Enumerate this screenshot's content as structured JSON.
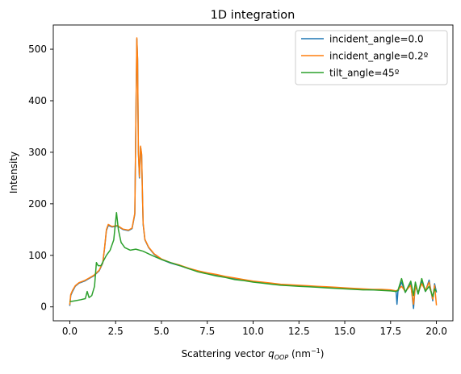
{
  "chart_data": {
    "type": "line",
    "title": "1D integration",
    "xlabel_main": "Scattering vector ",
    "xlabel_var": "q",
    "xlabel_sub": "OOP",
    "xlabel_unit": " (nm",
    "xlabel_exp": "−1",
    "xlabel_close": ")",
    "ylabel": "Intensity",
    "xlim": [
      -0.9,
      20.9
    ],
    "ylim": [
      -27,
      547
    ],
    "xticks": [
      0.0,
      2.5,
      5.0,
      7.5,
      10.0,
      12.5,
      15.0,
      17.5,
      20.0
    ],
    "xtick_labels": [
      "0.0",
      "2.5",
      "5.0",
      "7.5",
      "10.0",
      "12.5",
      "15.0",
      "17.5",
      "20.0"
    ],
    "yticks": [
      0,
      100,
      200,
      300,
      400,
      500
    ],
    "ytick_labels": [
      "0",
      "100",
      "200",
      "300",
      "400",
      "500"
    ],
    "legend_position": "top-right",
    "series": [
      {
        "name": "incident_angle=0.0",
        "color": "#1f77b4",
        "points": [
          [
            0.0,
            2
          ],
          [
            0.05,
            22
          ],
          [
            0.15,
            30
          ],
          [
            0.3,
            40
          ],
          [
            0.5,
            46
          ],
          [
            0.8,
            50
          ],
          [
            1.0,
            54
          ],
          [
            1.3,
            60
          ],
          [
            1.6,
            70
          ],
          [
            1.8,
            85
          ],
          [
            1.9,
            115
          ],
          [
            2.0,
            148
          ],
          [
            2.1,
            158
          ],
          [
            2.3,
            155
          ],
          [
            2.6,
            157
          ],
          [
            2.9,
            150
          ],
          [
            3.2,
            148
          ],
          [
            3.4,
            152
          ],
          [
            3.55,
            180
          ],
          [
            3.62,
            400
          ],
          [
            3.66,
            520
          ],
          [
            3.7,
            480
          ],
          [
            3.74,
            300
          ],
          [
            3.8,
            250
          ],
          [
            3.86,
            310
          ],
          [
            3.92,
            295
          ],
          [
            3.96,
            220
          ],
          [
            4.0,
            160
          ],
          [
            4.1,
            130
          ],
          [
            4.3,
            115
          ],
          [
            4.6,
            102
          ],
          [
            5.0,
            92
          ],
          [
            5.5,
            85
          ],
          [
            6.0,
            80
          ],
          [
            6.5,
            74
          ],
          [
            7.0,
            69
          ],
          [
            7.5,
            65
          ],
          [
            8.0,
            62
          ],
          [
            8.5,
            58
          ],
          [
            9.0,
            55
          ],
          [
            9.5,
            52
          ],
          [
            10.0,
            49
          ],
          [
            10.5,
            47
          ],
          [
            11.0,
            45
          ],
          [
            11.5,
            43
          ],
          [
            12.0,
            42
          ],
          [
            12.5,
            41
          ],
          [
            13.0,
            40
          ],
          [
            13.5,
            39
          ],
          [
            14.0,
            38
          ],
          [
            14.5,
            37
          ],
          [
            15.0,
            36
          ],
          [
            15.5,
            35
          ],
          [
            16.0,
            34
          ],
          [
            16.5,
            33
          ],
          [
            17.0,
            33
          ],
          [
            17.5,
            32
          ],
          [
            17.8,
            30
          ],
          [
            17.85,
            5
          ],
          [
            17.9,
            30
          ],
          [
            18.1,
            48
          ],
          [
            18.3,
            28
          ],
          [
            18.6,
            46
          ],
          [
            18.75,
            -3
          ],
          [
            18.85,
            45
          ],
          [
            19.0,
            25
          ],
          [
            19.2,
            50
          ],
          [
            19.4,
            30
          ],
          [
            19.6,
            52
          ],
          [
            19.8,
            12
          ],
          [
            19.9,
            45
          ],
          [
            20.0,
            28
          ]
        ]
      },
      {
        "name": "incident_angle=0.2º",
        "color": "#ff7f0e",
        "points": [
          [
            0.0,
            4
          ],
          [
            0.05,
            24
          ],
          [
            0.15,
            32
          ],
          [
            0.3,
            41
          ],
          [
            0.5,
            47
          ],
          [
            0.8,
            51
          ],
          [
            1.0,
            55
          ],
          [
            1.3,
            61
          ],
          [
            1.6,
            71
          ],
          [
            1.8,
            86
          ],
          [
            1.9,
            116
          ],
          [
            2.0,
            150
          ],
          [
            2.1,
            160
          ],
          [
            2.3,
            156
          ],
          [
            2.6,
            158
          ],
          [
            2.9,
            151
          ],
          [
            3.2,
            149
          ],
          [
            3.4,
            153
          ],
          [
            3.55,
            182
          ],
          [
            3.62,
            402
          ],
          [
            3.66,
            522
          ],
          [
            3.7,
            482
          ],
          [
            3.74,
            302
          ],
          [
            3.8,
            252
          ],
          [
            3.86,
            312
          ],
          [
            3.92,
            297
          ],
          [
            3.96,
            222
          ],
          [
            4.0,
            162
          ],
          [
            4.1,
            131
          ],
          [
            4.3,
            116
          ],
          [
            4.6,
            103
          ],
          [
            5.0,
            93
          ],
          [
            5.5,
            86
          ],
          [
            6.0,
            81
          ],
          [
            6.5,
            75
          ],
          [
            7.0,
            70
          ],
          [
            7.5,
            66
          ],
          [
            8.0,
            63
          ],
          [
            8.5,
            59
          ],
          [
            9.0,
            56
          ],
          [
            9.5,
            53
          ],
          [
            10.0,
            50
          ],
          [
            10.5,
            48
          ],
          [
            11.0,
            46
          ],
          [
            11.5,
            44
          ],
          [
            12.0,
            43
          ],
          [
            12.5,
            42
          ],
          [
            13.0,
            41
          ],
          [
            13.5,
            40
          ],
          [
            14.0,
            39
          ],
          [
            14.5,
            38
          ],
          [
            15.0,
            37
          ],
          [
            15.5,
            36
          ],
          [
            16.0,
            35
          ],
          [
            16.5,
            34
          ],
          [
            17.0,
            34
          ],
          [
            17.5,
            33
          ],
          [
            17.8,
            31
          ],
          [
            17.9,
            33
          ],
          [
            18.1,
            40
          ],
          [
            18.3,
            30
          ],
          [
            18.6,
            42
          ],
          [
            18.75,
            5
          ],
          [
            18.85,
            40
          ],
          [
            19.0,
            28
          ],
          [
            19.2,
            45
          ],
          [
            19.4,
            32
          ],
          [
            19.6,
            48
          ],
          [
            19.8,
            15
          ],
          [
            19.9,
            42
          ],
          [
            20.0,
            3
          ]
        ]
      },
      {
        "name": "tilt_angle=45º",
        "color": "#2ca02c",
        "points": [
          [
            0.0,
            10
          ],
          [
            0.3,
            12
          ],
          [
            0.6,
            14
          ],
          [
            0.85,
            16
          ],
          [
            0.95,
            30
          ],
          [
            1.05,
            18
          ],
          [
            1.2,
            22
          ],
          [
            1.35,
            40
          ],
          [
            1.45,
            86
          ],
          [
            1.55,
            80
          ],
          [
            1.7,
            80
          ],
          [
            1.85,
            90
          ],
          [
            2.0,
            100
          ],
          [
            2.2,
            110
          ],
          [
            2.4,
            130
          ],
          [
            2.55,
            183
          ],
          [
            2.65,
            150
          ],
          [
            2.8,
            125
          ],
          [
            3.0,
            115
          ],
          [
            3.3,
            110
          ],
          [
            3.6,
            112
          ],
          [
            3.8,
            110
          ],
          [
            4.0,
            108
          ],
          [
            4.3,
            103
          ],
          [
            4.6,
            98
          ],
          [
            5.0,
            92
          ],
          [
            5.5,
            86
          ],
          [
            6.0,
            80
          ],
          [
            6.5,
            74
          ],
          [
            7.0,
            68
          ],
          [
            7.5,
            64
          ],
          [
            8.0,
            60
          ],
          [
            8.5,
            57
          ],
          [
            9.0,
            53
          ],
          [
            9.5,
            51
          ],
          [
            10.0,
            48
          ],
          [
            10.5,
            46
          ],
          [
            11.0,
            44
          ],
          [
            11.5,
            42
          ],
          [
            12.0,
            41
          ],
          [
            12.5,
            40
          ],
          [
            13.0,
            39
          ],
          [
            13.5,
            38
          ],
          [
            14.0,
            37
          ],
          [
            14.5,
            36
          ],
          [
            15.0,
            35
          ],
          [
            15.5,
            34
          ],
          [
            16.0,
            33
          ],
          [
            16.5,
            33
          ],
          [
            17.0,
            32
          ],
          [
            17.5,
            31
          ],
          [
            17.8,
            30
          ],
          [
            17.9,
            32
          ],
          [
            18.1,
            55
          ],
          [
            18.3,
            28
          ],
          [
            18.6,
            50
          ],
          [
            18.75,
            22
          ],
          [
            18.85,
            48
          ],
          [
            19.0,
            25
          ],
          [
            19.2,
            55
          ],
          [
            19.4,
            30
          ],
          [
            19.6,
            40
          ],
          [
            19.8,
            20
          ],
          [
            19.9,
            35
          ],
          [
            20.0,
            30
          ]
        ]
      }
    ]
  }
}
